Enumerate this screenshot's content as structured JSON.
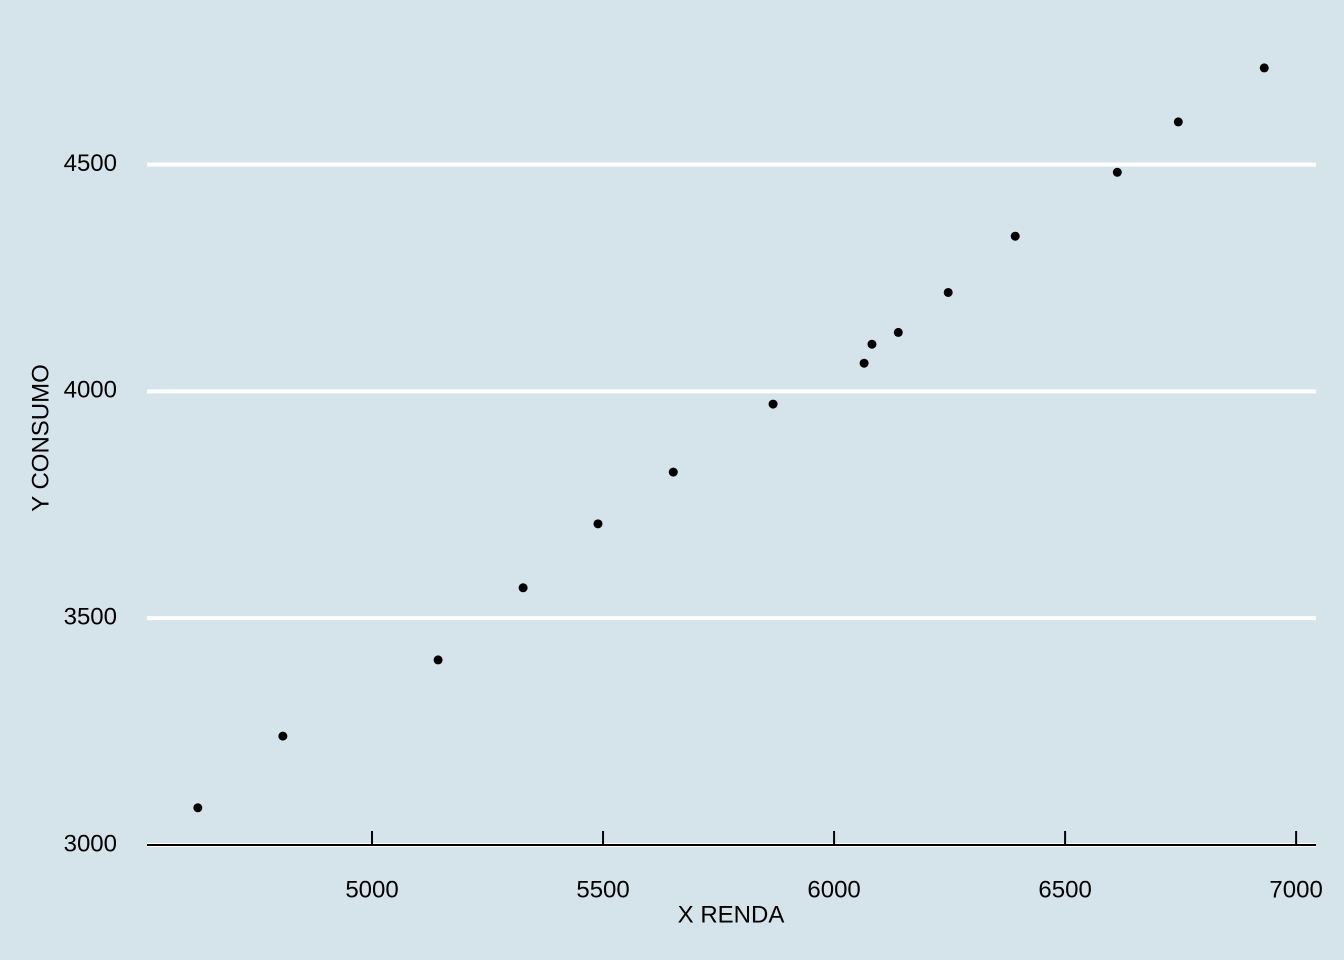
{
  "chart_data": {
    "type": "scatter",
    "xlabel": "X RENDA",
    "ylabel": "Y CONSUMO",
    "x": [
      4623,
      4807,
      5143,
      5327,
      5489,
      5652,
      5868,
      6065,
      6082,
      6139,
      6247,
      6392,
      6613,
      6745,
      6931
    ],
    "values": [
      3082,
      3240,
      3408,
      3567,
      3708,
      3822,
      3972,
      4062,
      4104,
      4130,
      4218,
      4342,
      4483,
      4594,
      4713
    ],
    "color": "#000000",
    "xlim": [
      4513,
      7043
    ],
    "ylim": [
      3000,
      4790
    ],
    "xticks": [
      5000,
      5500,
      6000,
      6500,
      7000
    ],
    "yticks": [
      3000,
      3500,
      4000,
      4500
    ],
    "grid": true
  }
}
